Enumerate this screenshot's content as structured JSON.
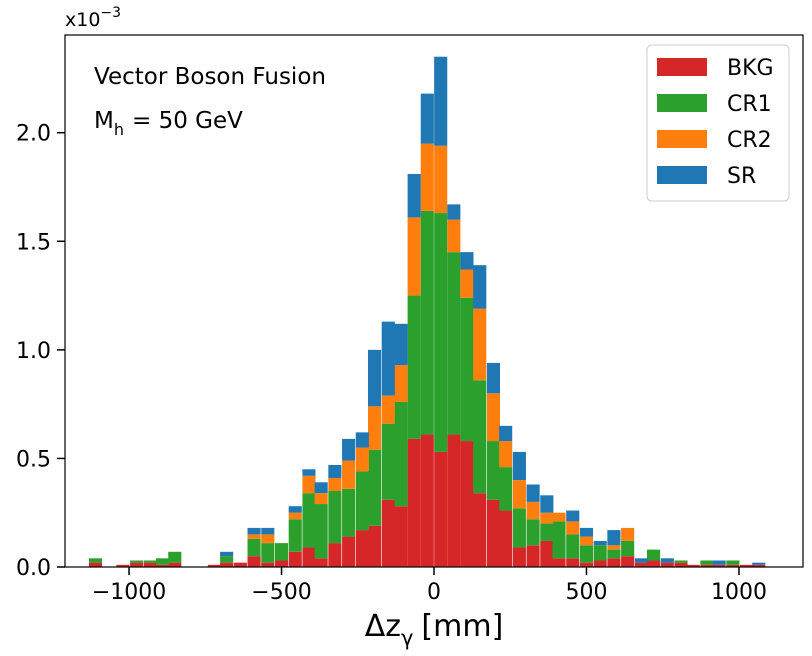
{
  "chart_data": {
    "type": "bar",
    "stacked": true,
    "histogram": true,
    "xlabel": "Δz",
    "xlabel_subscript": "γ",
    "xlabel_unit": "[mm]",
    "ylabel": "",
    "y_scale_label": "x10",
    "y_scale_exponent": "−3",
    "annotation_title": "Vector Boson Fusion",
    "annotation_mass_symbol": "M",
    "annotation_mass_subscript": "h",
    "annotation_mass_value": "= 50 GeV",
    "xlim": [
      -1210,
      1210
    ],
    "ylim": [
      0,
      2.45
    ],
    "bin_width": 43,
    "x_ticks": [
      -1000,
      -500,
      0,
      500,
      1000
    ],
    "x_tick_labels": [
      "−1000",
      "−500",
      "0",
      "500",
      "1000"
    ],
    "y_ticks": [
      0.0,
      0.5,
      1.0,
      1.5,
      2.0
    ],
    "y_tick_labels": [
      "0.0",
      "0.5",
      "1.0",
      "1.5",
      "2.0"
    ],
    "legend_position": "top-right",
    "series": [
      {
        "name": "BKG",
        "color": "#d62728",
        "values": [
          {
            "x": -1110,
            "y": 0.02
          },
          {
            "x": -1020,
            "y": 0.01
          },
          {
            "x": -975,
            "y": 0.02
          },
          {
            "x": -930,
            "y": 0.02
          },
          {
            "x": -890,
            "y": 0.01
          },
          {
            "x": -850,
            "y": 0.02
          },
          {
            "x": -720,
            "y": 0.01
          },
          {
            "x": -680,
            "y": 0.02
          },
          {
            "x": -635,
            "y": 0.02
          },
          {
            "x": -590,
            "y": 0.05
          },
          {
            "x": -545,
            "y": 0.02
          },
          {
            "x": -500,
            "y": 0.03
          },
          {
            "x": -455,
            "y": 0.07
          },
          {
            "x": -410,
            "y": 0.09
          },
          {
            "x": -370,
            "y": 0.04
          },
          {
            "x": -325,
            "y": 0.11
          },
          {
            "x": -280,
            "y": 0.14
          },
          {
            "x": -235,
            "y": 0.17
          },
          {
            "x": -195,
            "y": 0.19
          },
          {
            "x": -150,
            "y": 0.31
          },
          {
            "x": -108,
            "y": 0.28
          },
          {
            "x": -65,
            "y": 0.59
          },
          {
            "x": -22,
            "y": 0.61
          },
          {
            "x": 22,
            "y": 0.53
          },
          {
            "x": 65,
            "y": 0.61
          },
          {
            "x": 108,
            "y": 0.58
          },
          {
            "x": 150,
            "y": 0.34
          },
          {
            "x": 195,
            "y": 0.31
          },
          {
            "x": 235,
            "y": 0.26
          },
          {
            "x": 280,
            "y": 0.09
          },
          {
            "x": 325,
            "y": 0.1
          },
          {
            "x": 370,
            "y": 0.12
          },
          {
            "x": 410,
            "y": 0.04
          },
          {
            "x": 455,
            "y": 0.04
          },
          {
            "x": 500,
            "y": 0.02
          },
          {
            "x": 545,
            "y": 0.03
          },
          {
            "x": 590,
            "y": 0.04
          },
          {
            "x": 635,
            "y": 0.05
          },
          {
            "x": 680,
            "y": 0.02
          },
          {
            "x": 720,
            "y": 0.03
          },
          {
            "x": 765,
            "y": 0.02
          },
          {
            "x": 810,
            "y": 0.02
          },
          {
            "x": 850,
            "y": 0.01
          },
          {
            "x": 895,
            "y": 0.01
          },
          {
            "x": 935,
            "y": 0.01
          },
          {
            "x": 980,
            "y": 0.01
          },
          {
            "x": 1025,
            "y": 0.01
          },
          {
            "x": 1065,
            "y": 0.01
          }
        ]
      },
      {
        "name": "CR1",
        "color": "#2ca02c",
        "values": [
          {
            "x": -1110,
            "y": 0.02
          },
          {
            "x": -1020,
            "y": 0.0
          },
          {
            "x": -975,
            "y": 0.01
          },
          {
            "x": -930,
            "y": 0.01
          },
          {
            "x": -890,
            "y": 0.03
          },
          {
            "x": -850,
            "y": 0.05
          },
          {
            "x": -720,
            "y": 0.0
          },
          {
            "x": -680,
            "y": 0.03
          },
          {
            "x": -635,
            "y": 0.0
          },
          {
            "x": -590,
            "y": 0.08
          },
          {
            "x": -545,
            "y": 0.09
          },
          {
            "x": -500,
            "y": 0.08
          },
          {
            "x": -455,
            "y": 0.15
          },
          {
            "x": -410,
            "y": 0.25
          },
          {
            "x": -370,
            "y": 0.25
          },
          {
            "x": -325,
            "y": 0.24
          },
          {
            "x": -280,
            "y": 0.22
          },
          {
            "x": -235,
            "y": 0.27
          },
          {
            "x": -195,
            "y": 0.35
          },
          {
            "x": -150,
            "y": 0.35
          },
          {
            "x": -108,
            "y": 0.48
          },
          {
            "x": -65,
            "y": 0.66
          },
          {
            "x": -22,
            "y": 1.03
          },
          {
            "x": 22,
            "y": 1.1
          },
          {
            "x": 65,
            "y": 0.84
          },
          {
            "x": 108,
            "y": 0.66
          },
          {
            "x": 150,
            "y": 0.52
          },
          {
            "x": 195,
            "y": 0.27
          },
          {
            "x": 235,
            "y": 0.2
          },
          {
            "x": 280,
            "y": 0.18
          },
          {
            "x": 325,
            "y": 0.12
          },
          {
            "x": 370,
            "y": 0.08
          },
          {
            "x": 410,
            "y": 0.17
          },
          {
            "x": 455,
            "y": 0.11
          },
          {
            "x": 500,
            "y": 0.08
          },
          {
            "x": 545,
            "y": 0.07
          },
          {
            "x": 590,
            "y": 0.04
          },
          {
            "x": 635,
            "y": 0.07
          },
          {
            "x": 680,
            "y": 0.0
          },
          {
            "x": 720,
            "y": 0.05
          },
          {
            "x": 765,
            "y": 0.0
          },
          {
            "x": 810,
            "y": 0.01
          },
          {
            "x": 850,
            "y": 0.0
          },
          {
            "x": 895,
            "y": 0.02
          },
          {
            "x": 935,
            "y": 0.0
          },
          {
            "x": 980,
            "y": 0.02
          },
          {
            "x": 1025,
            "y": 0.0
          },
          {
            "x": 1065,
            "y": 0.0
          }
        ]
      },
      {
        "name": "CR2",
        "color": "#ff7f0e",
        "values": [
          {
            "x": -1110,
            "y": 0.0
          },
          {
            "x": -1020,
            "y": 0.0
          },
          {
            "x": -975,
            "y": 0.0
          },
          {
            "x": -930,
            "y": 0.0
          },
          {
            "x": -890,
            "y": 0.0
          },
          {
            "x": -850,
            "y": 0.0
          },
          {
            "x": -720,
            "y": 0.0
          },
          {
            "x": -680,
            "y": 0.0
          },
          {
            "x": -635,
            "y": 0.0
          },
          {
            "x": -590,
            "y": 0.02
          },
          {
            "x": -545,
            "y": 0.04
          },
          {
            "x": -500,
            "y": 0.0
          },
          {
            "x": -455,
            "y": 0.03
          },
          {
            "x": -410,
            "y": 0.08
          },
          {
            "x": -370,
            "y": 0.05
          },
          {
            "x": -325,
            "y": 0.06
          },
          {
            "x": -280,
            "y": 0.13
          },
          {
            "x": -235,
            "y": 0.11
          },
          {
            "x": -195,
            "y": 0.2
          },
          {
            "x": -150,
            "y": 0.13
          },
          {
            "x": -108,
            "y": 0.17
          },
          {
            "x": -65,
            "y": 0.36
          },
          {
            "x": -22,
            "y": 0.31
          },
          {
            "x": 22,
            "y": 0.31
          },
          {
            "x": 65,
            "y": 0.15
          },
          {
            "x": 108,
            "y": 0.13
          },
          {
            "x": 150,
            "y": 0.33
          },
          {
            "x": 195,
            "y": 0.22
          },
          {
            "x": 235,
            "y": 0.12
          },
          {
            "x": 280,
            "y": 0.13
          },
          {
            "x": 325,
            "y": 0.08
          },
          {
            "x": 370,
            "y": 0.05
          },
          {
            "x": 410,
            "y": 0.04
          },
          {
            "x": 455,
            "y": 0.06
          },
          {
            "x": 500,
            "y": 0.04
          },
          {
            "x": 545,
            "y": 0.0
          },
          {
            "x": 590,
            "y": 0.02
          },
          {
            "x": 635,
            "y": 0.06
          },
          {
            "x": 680,
            "y": 0.0
          },
          {
            "x": 720,
            "y": 0.0
          },
          {
            "x": 765,
            "y": 0.0
          },
          {
            "x": 810,
            "y": 0.0
          },
          {
            "x": 850,
            "y": 0.0
          },
          {
            "x": 895,
            "y": 0.0
          },
          {
            "x": 935,
            "y": 0.0
          },
          {
            "x": 980,
            "y": 0.0
          },
          {
            "x": 1025,
            "y": 0.0
          },
          {
            "x": 1065,
            "y": 0.0
          }
        ]
      },
      {
        "name": "SR",
        "color": "#1f77b4",
        "values": [
          {
            "x": -1110,
            "y": 0.0
          },
          {
            "x": -1020,
            "y": 0.0
          },
          {
            "x": -975,
            "y": 0.0
          },
          {
            "x": -930,
            "y": 0.0
          },
          {
            "x": -890,
            "y": 0.0
          },
          {
            "x": -850,
            "y": 0.0
          },
          {
            "x": -720,
            "y": 0.0
          },
          {
            "x": -680,
            "y": 0.02
          },
          {
            "x": -635,
            "y": 0.0
          },
          {
            "x": -590,
            "y": 0.03
          },
          {
            "x": -545,
            "y": 0.03
          },
          {
            "x": -500,
            "y": 0.0
          },
          {
            "x": -455,
            "y": 0.03
          },
          {
            "x": -410,
            "y": 0.03
          },
          {
            "x": -370,
            "y": 0.05
          },
          {
            "x": -325,
            "y": 0.06
          },
          {
            "x": -280,
            "y": 0.1
          },
          {
            "x": -235,
            "y": 0.07
          },
          {
            "x": -195,
            "y": 0.26
          },
          {
            "x": -150,
            "y": 0.34
          },
          {
            "x": -108,
            "y": 0.19
          },
          {
            "x": -65,
            "y": 0.2
          },
          {
            "x": -22,
            "y": 0.23
          },
          {
            "x": 22,
            "y": 0.41
          },
          {
            "x": 65,
            "y": 0.07
          },
          {
            "x": 108,
            "y": 0.08
          },
          {
            "x": 150,
            "y": 0.2
          },
          {
            "x": 195,
            "y": 0.14
          },
          {
            "x": 235,
            "y": 0.07
          },
          {
            "x": 280,
            "y": 0.13
          },
          {
            "x": 325,
            "y": 0.08
          },
          {
            "x": 370,
            "y": 0.08
          },
          {
            "x": 410,
            "y": 0.0
          },
          {
            "x": 455,
            "y": 0.05
          },
          {
            "x": 500,
            "y": 0.04
          },
          {
            "x": 545,
            "y": 0.02
          },
          {
            "x": 590,
            "y": 0.07
          },
          {
            "x": 635,
            "y": 0.0
          },
          {
            "x": 680,
            "y": 0.02
          },
          {
            "x": 720,
            "y": 0.0
          },
          {
            "x": 765,
            "y": 0.02
          },
          {
            "x": 810,
            "y": 0.0
          },
          {
            "x": 850,
            "y": 0.0
          },
          {
            "x": 895,
            "y": 0.0
          },
          {
            "x": 935,
            "y": 0.02
          },
          {
            "x": 980,
            "y": 0.0
          },
          {
            "x": 1025,
            "y": 0.0
          },
          {
            "x": 1065,
            "y": 0.01
          }
        ]
      }
    ]
  }
}
